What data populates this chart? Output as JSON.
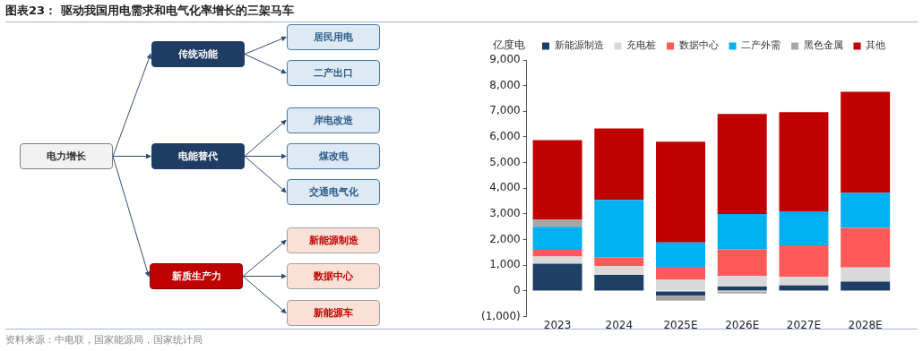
{
  "chart_data": [
    {
      "type": "other",
      "title": "图表23：  驱动我国用电需求和电气化率增长的三架马车",
      "annotations": [
        "电力增长",
        "传统动能",
        "居民用电",
        "二产出口",
        "电能替代",
        "岸电改造",
        "煤改电",
        "交通电气化",
        "新质生产力",
        "新能源制造",
        "数据中心",
        "新能源车"
      ]
    },
    {
      "type": "bar",
      "stacked": true,
      "ylabel": "亿度电",
      "categories": [
        "2023",
        "2024",
        "2025E",
        "2026E",
        "2027E",
        "2028E"
      ],
      "series": [
        {
          "name": "新能源制造",
          "color": "#1f3f66",
          "values": [
            1060,
            630,
            -180,
            170,
            220,
            360
          ]
        },
        {
          "name": "充电桩",
          "color": "#d9d9d9",
          "values": [
            280,
            340,
            430,
            410,
            330,
            550
          ]
        },
        {
          "name": "数据中心",
          "color": "#ff5a5a",
          "values": [
            260,
            340,
            510,
            1040,
            1230,
            1550
          ]
        },
        {
          "name": "二产外需",
          "color": "#00b0f0",
          "values": [
            900,
            2240,
            950,
            1380,
            1320,
            1370
          ]
        },
        {
          "name": "黑色金属",
          "color": "#a6a6a6",
          "values": [
            280,
            0,
            -200,
            -100,
            0,
            0
          ]
        },
        {
          "name": "其他",
          "color": "#c00000",
          "values": [
            3100,
            2780,
            3930,
            3900,
            3870,
            3930
          ]
        }
      ],
      "ylim": [
        -1000,
        9000
      ],
      "yticks": [
        {
          "value": -1000,
          "label": "(1,000)"
        },
        {
          "value": 0,
          "label": "0"
        },
        {
          "value": 1000,
          "label": "1,000"
        },
        {
          "value": 2000,
          "label": "2,000"
        },
        {
          "value": 3000,
          "label": "3,000"
        },
        {
          "value": 4000,
          "label": "4,000"
        },
        {
          "value": 5000,
          "label": "5,000"
        },
        {
          "value": 6000,
          "label": "6,000"
        },
        {
          "value": 7000,
          "label": "7,000"
        },
        {
          "value": 8000,
          "label": "8,000"
        },
        {
          "value": 9000,
          "label": "9,000"
        }
      ],
      "grid": false,
      "legend": "top",
      "annotations": [
        "资料来源：中电联，国家能源局，国家统计局"
      ]
    }
  ]
}
